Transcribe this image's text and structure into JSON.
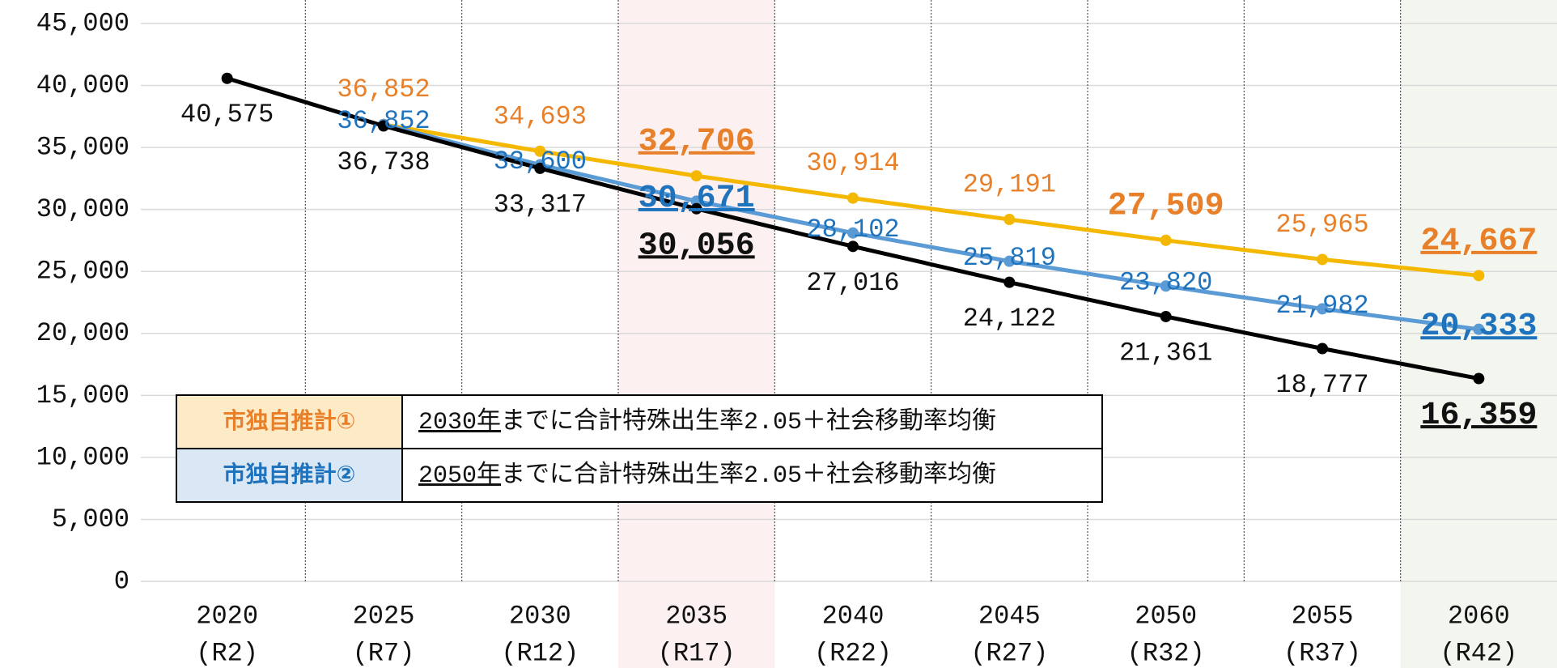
{
  "chart_data": {
    "type": "line",
    "categories": [
      "2020",
      "2025",
      "2030",
      "2035",
      "2040",
      "2045",
      "2050",
      "2055",
      "2060"
    ],
    "era_labels": [
      "(R2)",
      "(R7)",
      "(R12)",
      "(R17)",
      "(R22)",
      "(R27)",
      "(R32)",
      "(R37)",
      "(R42)"
    ],
    "series": [
      {
        "color": "#000000",
        "label_color": "#111111",
        "values": [
          40575,
          36738,
          33317,
          30056,
          27016,
          24122,
          21361,
          18777,
          16359
        ],
        "value_labels": [
          "40,575",
          "36,738",
          "33,317",
          "30,056",
          "27,016",
          "24,122",
          "21,361",
          "18,777",
          "16,359"
        ]
      },
      {
        "name": "市独自推計①",
        "description_year": "2030年",
        "description": "までに合計特殊出生率2.05＋社会移動率均衡",
        "color": "#f5b800",
        "label_color": "#e8802a",
        "legend_bg": "#fdebc8",
        "values": [
          null,
          36852,
          34693,
          32706,
          30914,
          29191,
          27509,
          25965,
          24667
        ],
        "value_labels": [
          null,
          "36,852",
          "34,693",
          "32,706",
          "30,914",
          "29,191",
          "27,509",
          "25,965",
          "24,667"
        ]
      },
      {
        "name": "市独自推計②",
        "description_year": "2050年",
        "description": "までに合計特殊出生率2.05＋社会移動率均衡",
        "color": "#5b9bd5",
        "label_color": "#1f73bd",
        "legend_bg": "#dae8f5",
        "values": [
          null,
          36852,
          33600,
          30671,
          28102,
          25819,
          23820,
          21982,
          20333
        ],
        "value_labels": [
          null,
          "36,852",
          "33,600",
          "30,671",
          "28,102",
          "25,819",
          "23,820",
          "21,982",
          "20,333"
        ]
      }
    ],
    "ylim": [
      0,
      45000
    ],
    "yticks": [
      0,
      {
        "value": 5000,
        "label": "5,000"
      },
      {
        "value": 10000,
        "label": "10,000"
      },
      {
        "value": 15000,
        "label": "15,000"
      },
      {
        "value": 20000,
        "label": "20,000"
      },
      {
        "value": 25000,
        "label": "25,000"
      },
      {
        "value": 30000,
        "label": "30,000"
      },
      {
        "value": 35000,
        "label": "35,000"
      },
      {
        "value": 40000,
        "label": "40,000"
      },
      {
        "value": 45000,
        "label": "45,000"
      }
    ],
    "grid": true
  }
}
